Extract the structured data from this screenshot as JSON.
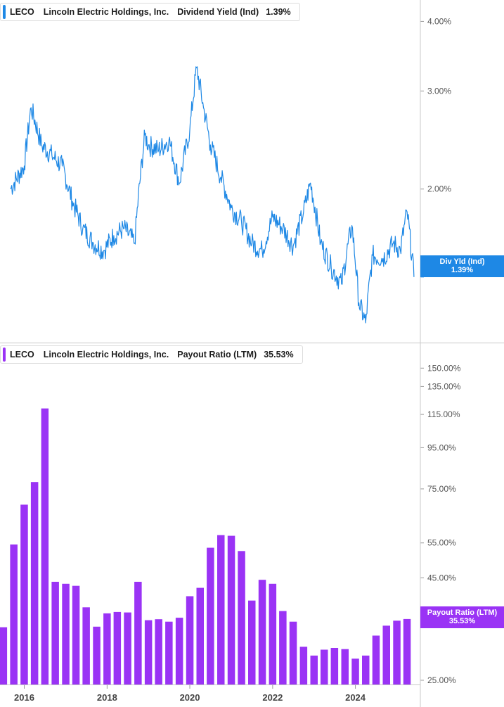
{
  "colors": {
    "yield": "#1e88e5",
    "payout": "#9a33f5",
    "axis": "#c8c8c8"
  },
  "top_panel": {
    "ticker": "LECO",
    "company": "Lincoln Electric Holdings, Inc.",
    "metric": "Dividend Yield (Ind)",
    "value": "1.39%",
    "tag_line1": "Div Yld (Ind)",
    "tag_line2": "1.39%"
  },
  "bottom_panel": {
    "ticker": "LECO",
    "company": "Lincoln Electric Holdings, Inc.",
    "metric": "Payout Ratio (LTM)",
    "value": "35.53%",
    "tag_line1": "Payout Ratio (LTM)",
    "tag_line2": "35.53%"
  },
  "chart_data": [
    {
      "type": "line",
      "scale": "log",
      "series": [
        {
          "x": [
            "2015-09-01",
            "2016-01-01",
            "2016-03-01",
            "2016-06-01",
            "2016-09-01",
            "2016-12-01",
            "2017-03-01",
            "2017-06-01",
            "2017-09-01",
            "2017-12-01",
            "2018-03-01",
            "2018-06-01",
            "2018-09-01",
            "2018-12-01",
            "2019-01-01",
            "2019-04-01",
            "2019-07-01",
            "2019-10-01",
            "2020-01-01",
            "2020-03-01",
            "2020-05-01",
            "2020-07-01",
            "2020-10-01",
            "2021-01-01",
            "2021-04-01",
            "2021-07-01",
            "2021-10-01",
            "2022-01-01",
            "2022-04-01",
            "2022-07-01",
            "2022-10-01",
            "2022-12-01",
            "2023-03-01",
            "2023-06-01",
            "2023-09-01",
            "2023-12-01",
            "2024-02-01",
            "2024-04-01",
            "2024-06-01",
            "2024-09-01",
            "2024-12-01",
            "2025-02-01",
            "2025-04-01",
            "2025-06-01"
          ],
          "values": [
            2.0,
            2.2,
            2.8,
            2.4,
            2.3,
            2.2,
            1.9,
            1.7,
            1.6,
            1.55,
            1.65,
            1.7,
            1.6,
            2.5,
            2.4,
            2.35,
            2.45,
            2.05,
            2.55,
            3.3,
            2.8,
            2.4,
            2.1,
            1.85,
            1.75,
            1.6,
            1.55,
            1.78,
            1.7,
            1.58,
            1.82,
            2.05,
            1.6,
            1.45,
            1.35,
            1.72,
            1.25,
            1.15,
            1.52,
            1.5,
            1.6,
            1.55,
            1.82,
            1.39
          ]
        }
      ],
      "yticks": [
        "4.00%",
        "3.00%",
        "2.00%"
      ],
      "ytick_values": [
        4.0,
        3.0,
        2.0
      ],
      "ylim": [
        1.06,
        4.22
      ]
    },
    {
      "type": "bar",
      "scale": "log",
      "series": [
        {
          "x": [
            "2015-07-01",
            "2015-10-01",
            "2016-01-01",
            "2016-04-01",
            "2016-07-01",
            "2016-10-01",
            "2017-01-01",
            "2017-04-01",
            "2017-07-01",
            "2017-10-01",
            "2018-01-01",
            "2018-04-01",
            "2018-07-01",
            "2018-10-01",
            "2019-01-01",
            "2019-04-01",
            "2019-07-01",
            "2019-10-01",
            "2020-01-01",
            "2020-04-01",
            "2020-07-01",
            "2020-10-01",
            "2021-01-01",
            "2021-04-01",
            "2021-07-01",
            "2021-10-01",
            "2022-01-01",
            "2022-04-01",
            "2022-07-01",
            "2022-10-01",
            "2023-01-01",
            "2023-04-01",
            "2023-07-01",
            "2023-10-01",
            "2024-01-01",
            "2024-04-01",
            "2024-07-01",
            "2024-10-01",
            "2025-01-01",
            "2025-04-01"
          ],
          "values": [
            33.9,
            54.5,
            68.5,
            78.0,
            119.0,
            44.0,
            43.5,
            43.0,
            38.0,
            34.0,
            36.7,
            37.0,
            36.9,
            44.0,
            35.3,
            35.5,
            35.0,
            35.8,
            40.5,
            42.5,
            53.5,
            57.5,
            57.3,
            52.5,
            39.5,
            44.5,
            43.5,
            37.2,
            35.0,
            30.3,
            28.8,
            29.8,
            30.1,
            29.9,
            28.3,
            28.8,
            32.3,
            34.2,
            35.2,
            35.53
          ]
        }
      ],
      "yticks": [
        "150.00%",
        "135.00%",
        "115.00%",
        "95.00%",
        "75.00%",
        "55.00%",
        "45.00%",
        "25.00%"
      ],
      "ytick_values": [
        150,
        135,
        115,
        95,
        75,
        55,
        45,
        25
      ],
      "ylim": [
        24.4,
        157
      ]
    }
  ],
  "x_axis": {
    "ticks": [
      "2016",
      "2018",
      "2020",
      "2022",
      "2024"
    ],
    "tick_dates": [
      "2016-01-01",
      "2018-01-01",
      "2020-01-01",
      "2022-01-01",
      "2024-01-01"
    ],
    "range": [
      "2015-06-01",
      "2025-07-15"
    ]
  }
}
